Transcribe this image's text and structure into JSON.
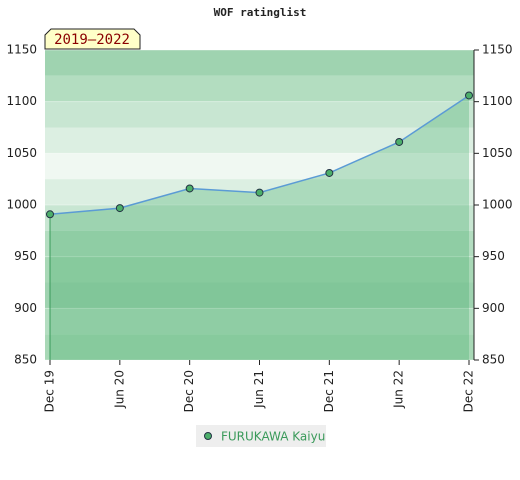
{
  "chart_data": {
    "type": "line",
    "title": "WOF ratinglist",
    "subtitle": "2019–2022",
    "categories": [
      "Dec 19",
      "Jun 20",
      "Dec 20",
      "Jun 21",
      "Dec 21",
      "Jun 22",
      "Dec 22"
    ],
    "series": [
      {
        "name": "FURUKAWA Kaiyu",
        "color": "#5b9bd5",
        "values": [
          991,
          997,
          1016,
          1012,
          1031,
          1061,
          1106
        ]
      }
    ],
    "ylim": [
      850,
      1150
    ],
    "yticks": [
      850,
      900,
      950,
      1000,
      1050,
      1100,
      1150
    ],
    "grid": true
  }
}
